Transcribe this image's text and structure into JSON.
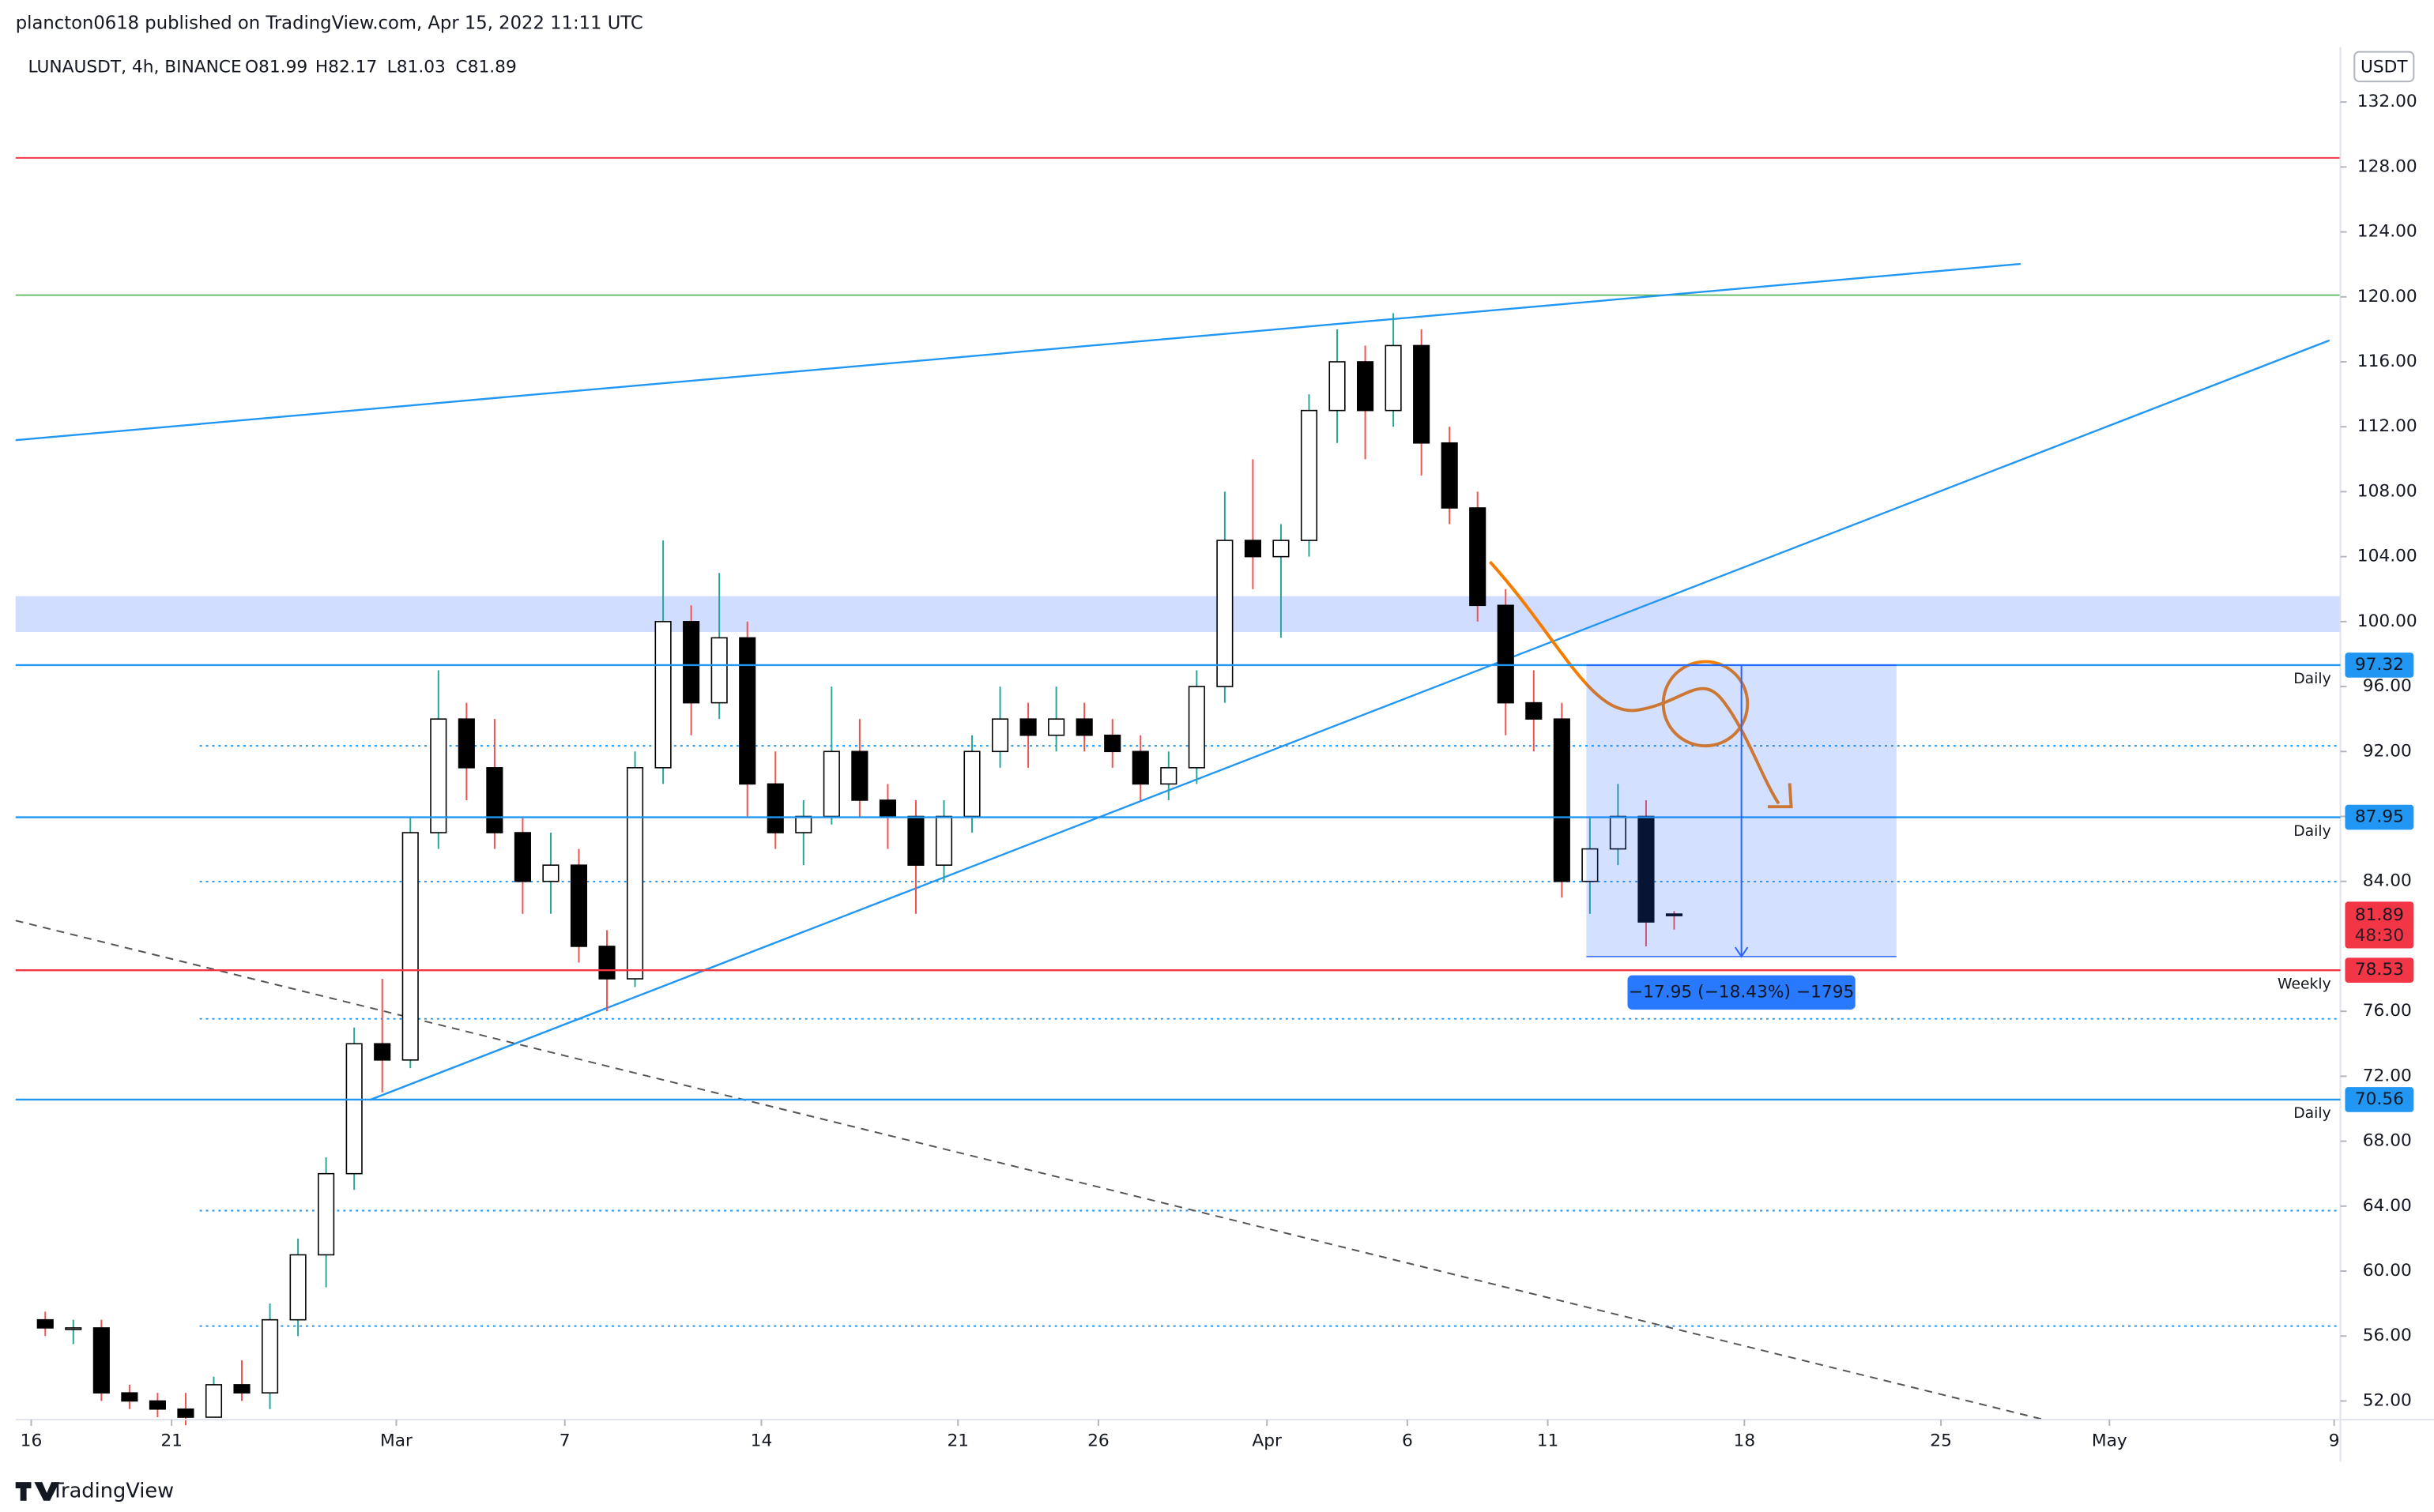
{
  "header": {
    "published": "plancton0618 published on TradingView.com, Apr 15, 2022 11:11 UTC",
    "brand": "TradingView"
  },
  "chart_data": {
    "type": "candlestick",
    "symbol": "LUNAUSDT, 4h, BINANCE",
    "ohlc_labels": [
      "O81.99",
      "H82.17",
      "L81.03",
      "C81.89"
    ],
    "currency": "USDT",
    "x": [
      "2022-02-16",
      "2022-02-17",
      "2022-02-18",
      "2022-02-19",
      "2022-02-20",
      "2022-02-21",
      "2022-02-22",
      "2022-02-23",
      "2022-02-24",
      "2022-02-25",
      "2022-02-26",
      "2022-02-27",
      "2022-02-28",
      "2022-03-01",
      "2022-03-02",
      "2022-03-03",
      "2022-03-04",
      "2022-03-05",
      "2022-03-06",
      "2022-03-07",
      "2022-03-08",
      "2022-03-09",
      "2022-03-10",
      "2022-03-11",
      "2022-03-12",
      "2022-03-13",
      "2022-03-14",
      "2022-03-15",
      "2022-03-16",
      "2022-03-17",
      "2022-03-18",
      "2022-03-19",
      "2022-03-20",
      "2022-03-21",
      "2022-03-22",
      "2022-03-23",
      "2022-03-24",
      "2022-03-25",
      "2022-03-26",
      "2022-03-27",
      "2022-03-28",
      "2022-03-29",
      "2022-03-30",
      "2022-03-31",
      "2022-04-01",
      "2022-04-02",
      "2022-04-03",
      "2022-04-04",
      "2022-04-05",
      "2022-04-06",
      "2022-04-07",
      "2022-04-08",
      "2022-04-09",
      "2022-04-10",
      "2022-04-11",
      "2022-04-12",
      "2022-04-13",
      "2022-04-14",
      "2022-04-15"
    ],
    "open": [
      57,
      56.5,
      56.5,
      52.5,
      52,
      51.5,
      51,
      53,
      52.5,
      57,
      61,
      66,
      74,
      73,
      87,
      94,
      91,
      87,
      84,
      85,
      80,
      78,
      91,
      100,
      95,
      99,
      90,
      87,
      88,
      92,
      89,
      88,
      85,
      88,
      92,
      94,
      93,
      94,
      93,
      92,
      90,
      91,
      96,
      105,
      104,
      105,
      113,
      116,
      113,
      117,
      111,
      107,
      101,
      95,
      94,
      84,
      86,
      88,
      81.99
    ],
    "high": [
      57.5,
      57,
      57,
      53,
      52.5,
      52.5,
      53.5,
      54.5,
      58,
      62,
      67,
      75,
      78,
      88,
      97,
      95,
      94,
      88,
      87,
      86,
      81,
      92,
      105,
      101,
      103,
      100,
      92,
      89,
      96,
      94,
      90,
      89,
      89,
      93,
      96,
      95,
      96,
      95,
      94,
      93,
      92,
      97,
      108,
      110,
      106,
      114,
      118,
      117,
      119,
      118,
      112,
      108,
      102,
      97,
      95,
      88,
      90,
      89,
      82.17
    ],
    "low": [
      56,
      55.5,
      52,
      51.5,
      51,
      50.5,
      51,
      52,
      51.5,
      56,
      59,
      65,
      71,
      72.5,
      86,
      89,
      86,
      82,
      82,
      79,
      76,
      77.5,
      90,
      93,
      94,
      88,
      86,
      85,
      87.5,
      88,
      86,
      82,
      84,
      87,
      91,
      91,
      92,
      92,
      91,
      89,
      89,
      90,
      95,
      102,
      99,
      104,
      111,
      110,
      112,
      109,
      106,
      100,
      93,
      92,
      83,
      82,
      85,
      80,
      81.03
    ],
    "close": [
      56.5,
      56.5,
      52.5,
      52,
      51.5,
      51,
      53,
      52.5,
      57,
      61,
      66,
      74,
      73,
      87,
      94,
      91,
      87,
      84,
      85,
      80,
      78,
      91,
      100,
      95,
      99,
      90,
      87,
      88,
      92,
      89,
      88,
      85,
      88,
      92,
      94,
      93,
      94,
      93,
      92,
      90,
      91,
      96,
      105,
      104,
      105,
      113,
      116,
      113,
      117,
      111,
      107,
      101,
      95,
      94,
      84,
      86,
      88,
      81.5,
      81.89
    ],
    "colors": {
      "body_up": "#ffffff",
      "body_down": "#000000",
      "wick_up": "#26a69a",
      "wick_down": "#ef5350",
      "border": "#000000"
    },
    "xlim": [
      "2022-02-15T10:40",
      "2022-05-09T05:20"
    ],
    "xticks": [
      {
        "value": "2022-02-16",
        "label": "16"
      },
      {
        "value": "2022-02-21",
        "label": "21"
      },
      {
        "value": "2022-03-01",
        "label": "Mar"
      },
      {
        "value": "2022-03-07",
        "label": "7"
      },
      {
        "value": "2022-03-14",
        "label": "14"
      },
      {
        "value": "2022-03-21",
        "label": "21"
      },
      {
        "value": "2022-03-26",
        "label": "26"
      },
      {
        "value": "2022-04-01",
        "label": "Apr"
      },
      {
        "value": "2022-04-06",
        "label": "6"
      },
      {
        "value": "2022-04-11",
        "label": "11"
      },
      {
        "value": "2022-04-18",
        "label": "18"
      },
      {
        "value": "2022-04-25",
        "label": "25"
      },
      {
        "value": "2022-05-01",
        "label": "May"
      },
      {
        "value": "2022-05-09",
        "label": "9"
      }
    ],
    "ylim": [
      50.85,
      135.38
    ],
    "yticks": [
      {
        "value": 132,
        "label": "132.00"
      },
      {
        "value": 128,
        "label": "128.00"
      },
      {
        "value": 124,
        "label": "124.00"
      },
      {
        "value": 120,
        "label": "120.00"
      },
      {
        "value": 116,
        "label": "116.00"
      },
      {
        "value": 112,
        "label": "112.00"
      },
      {
        "value": 108,
        "label": "108.00"
      },
      {
        "value": 104,
        "label": "104.00"
      },
      {
        "value": 100,
        "label": "100.00"
      },
      {
        "value": 96,
        "label": "96.00"
      },
      {
        "value": 92,
        "label": "92.00"
      },
      {
        "value": 88,
        "label": "88.00"
      },
      {
        "value": 84,
        "label": "84.00"
      },
      {
        "value": 76,
        "label": "76.00"
      },
      {
        "value": 72,
        "label": "72.00"
      },
      {
        "value": 68,
        "label": "68.00"
      },
      {
        "value": 64,
        "label": "64.00"
      },
      {
        "value": 60,
        "label": "60.00"
      },
      {
        "value": 56,
        "label": "56.00"
      },
      {
        "value": 52,
        "label": "52.00"
      }
    ],
    "levels": [
      {
        "value": 97.32,
        "label": "Daily",
        "color": "#2196f3"
      },
      {
        "value": 87.95,
        "label": "Daily",
        "color": "#2196f3"
      },
      {
        "value": 78.53,
        "label": "Weekly",
        "color": "#f23645"
      },
      {
        "value": 70.56,
        "label": "Daily",
        "color": "#2196f3"
      }
    ],
    "last_price": {
      "value": 81.89,
      "countdown": "48:30",
      "color": "#f23645"
    },
    "measure": {
      "from": 97.32,
      "to": 79.37,
      "start": "2022-04-12T09:00",
      "end": "2022-04-23T10:00",
      "label": "−17.95 (−18.43%) −1795",
      "color": "#2962ff"
    }
  }
}
